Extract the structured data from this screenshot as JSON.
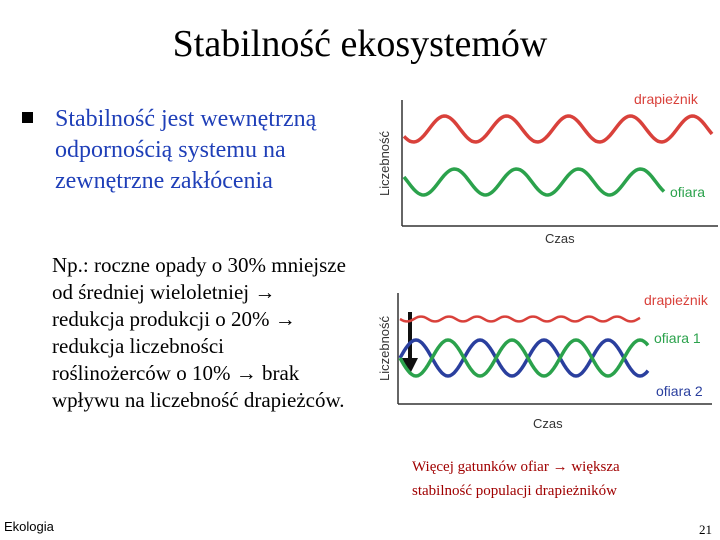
{
  "slide": {
    "title": "Stabilność ekosystemów",
    "bullet_lines": [
      "Stabilność jest wewnętrzną",
      "odpornością systemu na",
      "zewnętrzne zakłócenia"
    ],
    "example_lines": [
      "Np.: roczne opady o 30% mniejsze",
      "od średniej wieloletniej",
      "redukcja produkcji o 20%",
      "redukcja liczebności",
      "roślinożerców o 10%",
      "brak",
      "wpływu na liczebność drapieżców."
    ],
    "conclusion_lines": [
      "Więcej gatunków ofiar",
      "większa",
      "stabilność populacji drapieżników"
    ],
    "footer_left": "Ekologia",
    "page_number": "21"
  },
  "colors": {
    "predator": "#d9413b",
    "prey1": "#2ba24c",
    "prey2": "#2a3f9e",
    "axis": "#333333",
    "arrow": "#111111"
  },
  "diagram_top": {
    "y_axis_label": "Liczebność",
    "x_axis_label": "Czas",
    "series_labels": {
      "predator": "drapieżnik",
      "prey": "ofiara"
    }
  },
  "diagram_bottom": {
    "y_axis_label": "Liczebność",
    "x_axis_label": "Czas",
    "series_labels": {
      "predator": "drapieżnik",
      "prey1": "ofiara 1",
      "prey2": "ofiara 2"
    }
  }
}
